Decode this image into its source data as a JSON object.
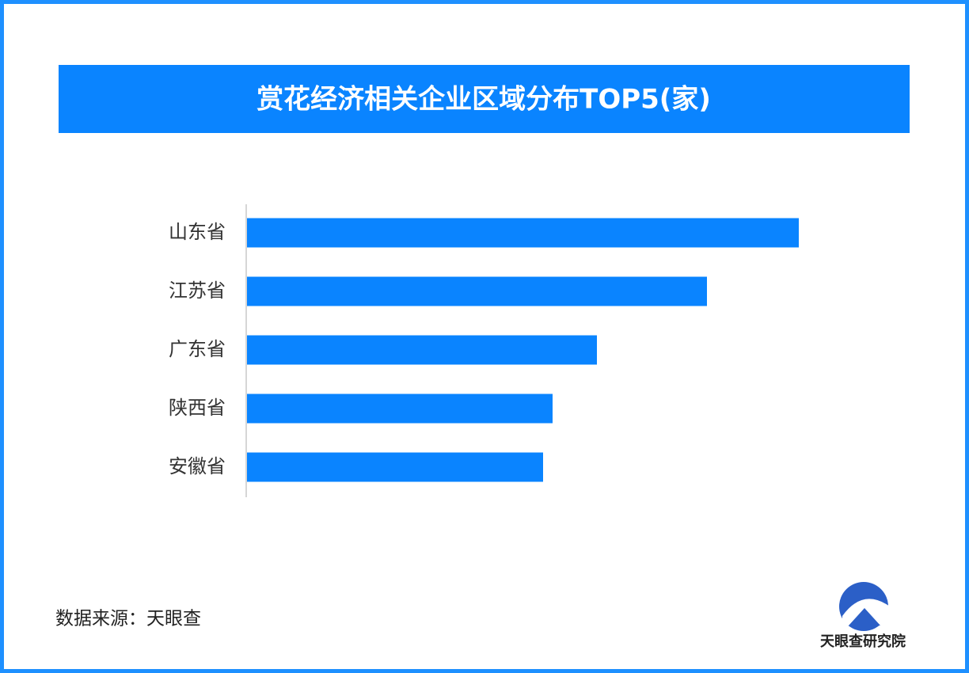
{
  "chart_data": {
    "type": "bar",
    "orientation": "horizontal",
    "title": "赏花经济相关企业区域分布TOP5(家)",
    "categories": [
      "山东省",
      "江苏省",
      "广东省",
      "陕西省",
      "安徽省"
    ],
    "values": [
      697,
      581,
      442,
      386,
      374
    ],
    "color": "#0a84ff",
    "xlim": [
      0,
      800
    ]
  },
  "source": "数据来源：天眼查",
  "logo": "天眼查研究院"
}
